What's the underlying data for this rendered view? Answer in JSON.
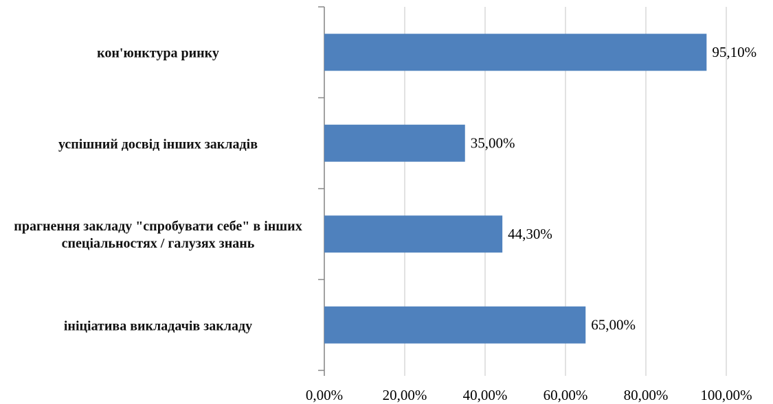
{
  "chart_data": {
    "type": "bar",
    "orientation": "horizontal",
    "categories": [
      "кон'юнктура ринку",
      "успішний досвід інших закладів",
      "прагнення закладу \"спробувати себе\" в інших спеціальностях / галузях знань",
      "ініціатива викладачів закладу"
    ],
    "values": [
      95.1,
      35,
      44.3,
      65
    ],
    "value_labels": [
      "95,10%",
      "35,00%",
      "44,30%",
      "65,00%"
    ],
    "color": "#4f81bd",
    "xlim": [
      0,
      100
    ],
    "xticks": [
      {
        "value": 0,
        "label": "0,00%"
      },
      {
        "value": 20,
        "label": "20,00%"
      },
      {
        "value": 40,
        "label": "40,00%"
      },
      {
        "value": 60,
        "label": "60,00%"
      },
      {
        "value": 80,
        "label": "80,00%"
      },
      {
        "value": 100,
        "label": "100,00%"
      }
    ],
    "grid": true
  }
}
